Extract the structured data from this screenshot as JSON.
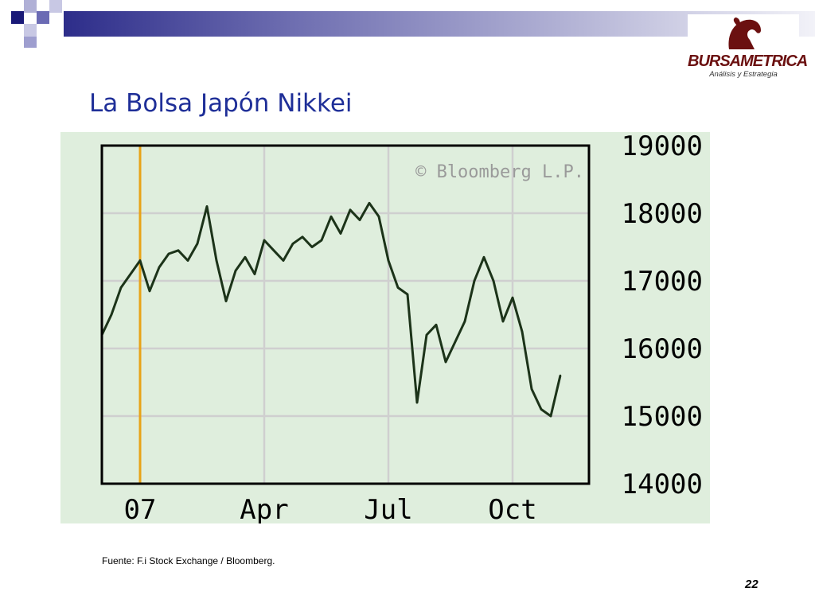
{
  "slide": {
    "title": "La Bolsa Japón Nikkei",
    "source": "Fuente: F.i Stock Exchange / Bloomberg.",
    "page_number": "22"
  },
  "logo": {
    "brand": "BURSAMETRICA",
    "tagline": "Análisis y Estrategia",
    "color": "#6b1010"
  },
  "colors": {
    "title": "#1f2f98",
    "chart_background": "#dfeedd",
    "price_line": "#1c3319",
    "marker_line": "#e8a317",
    "grid": "#cfcfcf"
  },
  "chart_data": {
    "type": "line",
    "title": "",
    "xlabel": "",
    "ylabel": "",
    "watermark": "© Bloomberg L.P.",
    "ylim": [
      14000,
      19000
    ],
    "yticks": [
      14000,
      15000,
      16000,
      17000,
      18000,
      19000
    ],
    "ytick_labels": [
      "14000",
      "15000",
      "16000",
      "17000",
      "18000",
      "19000"
    ],
    "y_axis_position": "right",
    "grid": true,
    "x_unit": "weeks",
    "xlim": [
      -4,
      47
    ],
    "xticks": [
      {
        "label": "07",
        "x": 0
      },
      {
        "label": "Apr",
        "x": 13
      },
      {
        "label": "Jul",
        "x": 26
      },
      {
        "label": "Oct",
        "x": 39
      }
    ],
    "marker_x": 0,
    "series": [
      {
        "values": [
          [
            -4,
            16200
          ],
          [
            -3,
            16500
          ],
          [
            -2,
            16900
          ],
          [
            -1,
            17100
          ],
          [
            0,
            17300
          ],
          [
            1,
            16850
          ],
          [
            2,
            17200
          ],
          [
            3,
            17400
          ],
          [
            4,
            17450
          ],
          [
            5,
            17300
          ],
          [
            6,
            17550
          ],
          [
            7,
            18100
          ],
          [
            8,
            17300
          ],
          [
            9,
            16700
          ],
          [
            10,
            17150
          ],
          [
            11,
            17350
          ],
          [
            12,
            17100
          ],
          [
            13,
            17600
          ],
          [
            14,
            17450
          ],
          [
            15,
            17300
          ],
          [
            16,
            17550
          ],
          [
            17,
            17650
          ],
          [
            18,
            17500
          ],
          [
            19,
            17600
          ],
          [
            20,
            17950
          ],
          [
            21,
            17700
          ],
          [
            22,
            18050
          ],
          [
            23,
            17900
          ],
          [
            24,
            18150
          ],
          [
            25,
            17950
          ],
          [
            26,
            17300
          ],
          [
            27,
            16900
          ],
          [
            28,
            16800
          ],
          [
            29,
            15200
          ],
          [
            30,
            16200
          ],
          [
            31,
            16350
          ],
          [
            32,
            15800
          ],
          [
            33,
            16100
          ],
          [
            34,
            16400
          ],
          [
            35,
            17000
          ],
          [
            36,
            17350
          ],
          [
            37,
            17000
          ],
          [
            38,
            16400
          ],
          [
            39,
            16750
          ],
          [
            40,
            16250
          ],
          [
            41,
            15400
          ],
          [
            42,
            15100
          ],
          [
            43,
            15000
          ],
          [
            44,
            15600
          ]
        ]
      }
    ]
  }
}
